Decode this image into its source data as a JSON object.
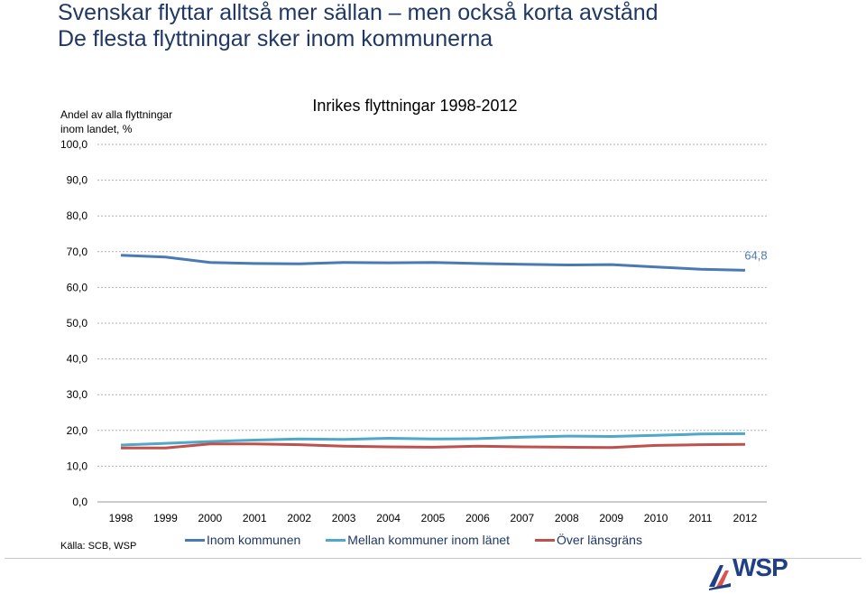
{
  "slide": {
    "title_line1": "Svenskar flyttar alltså mer sällan – men också korta avstånd",
    "title_line2": "De flesta flyttningar sker inom kommunerna",
    "source": "Källa: SCB, WSP"
  },
  "colors": {
    "title": "#1f3864",
    "series_inom_kommunen": "#4a7ab5",
    "series_mellan_kommuner": "#4fa8c9",
    "series_over_lansgrans": "#c0504d",
    "logo": "#1f3f86",
    "logo_accent": "#d9534f"
  },
  "logo": {
    "text": "WSP",
    "icon": "wsp-logo-icon"
  },
  "chart_data": {
    "type": "line",
    "title": "Inrikes flyttningar 1998-2012",
    "ylabel": "Andel av alla flyttningar inom landet, %",
    "ylabel_lines": [
      "Andel av alla flyttningar",
      "inom landet, %"
    ],
    "xlabel": "",
    "ylim": [
      0,
      100
    ],
    "y_ticks": [
      "0,0",
      "10,0",
      "20,0",
      "30,0",
      "40,0",
      "50,0",
      "60,0",
      "70,0",
      "80,0",
      "90,0",
      "100,0"
    ],
    "categories": [
      "1998",
      "1999",
      "2000",
      "2001",
      "2002",
      "2003",
      "2004",
      "2005",
      "2006",
      "2007",
      "2008",
      "2009",
      "2010",
      "2011",
      "2012"
    ],
    "grid": "horizontal dashed",
    "legend_position": "bottom",
    "series": [
      {
        "name": "Inom kommunen",
        "color": "#4a7ab5",
        "values": [
          69.0,
          68.5,
          67.0,
          66.7,
          66.6,
          67.0,
          66.9,
          67.0,
          66.7,
          66.5,
          66.3,
          66.4,
          65.7,
          65.1,
          64.8
        ]
      },
      {
        "name": "Mellan kommuner inom länet",
        "color": "#4fa8c9",
        "values": [
          15.9,
          16.4,
          16.9,
          17.3,
          17.6,
          17.5,
          17.8,
          17.6,
          17.7,
          18.1,
          18.4,
          18.3,
          18.6,
          19.0,
          19.1
        ]
      },
      {
        "name": "Över länsgräns",
        "color": "#c0504d",
        "values": [
          15.1,
          15.1,
          16.2,
          16.2,
          16.0,
          15.6,
          15.4,
          15.3,
          15.6,
          15.4,
          15.3,
          15.2,
          15.8,
          16.0,
          16.1
        ]
      }
    ],
    "annotation": {
      "text": "64,8",
      "series": 0,
      "index": 14
    }
  }
}
